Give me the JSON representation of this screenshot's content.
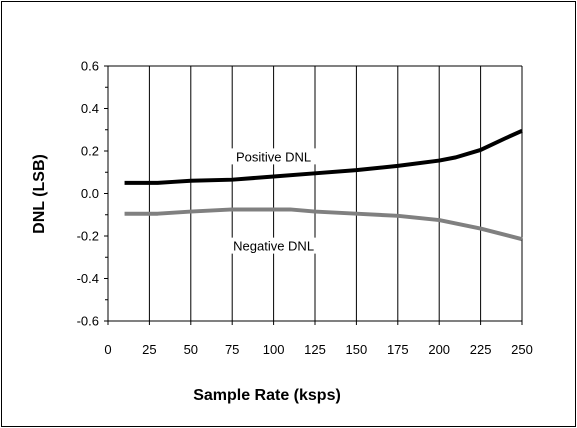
{
  "chart_data": {
    "type": "line",
    "title": "",
    "xlabel": "Sample Rate (ksps)",
    "ylabel": "DNL (LSB)",
    "xlim": [
      0,
      250
    ],
    "ylim": [
      -0.6,
      0.6
    ],
    "x_ticks": [
      0,
      25,
      50,
      75,
      100,
      125,
      150,
      175,
      200,
      225,
      250
    ],
    "y_ticks": [
      -0.6,
      -0.4,
      -0.2,
      0.0,
      0.2,
      0.4,
      0.6
    ],
    "x_tick_labels": [
      "0",
      "25",
      "50",
      "75",
      "100",
      "125",
      "150",
      "175",
      "200",
      "225",
      "250"
    ],
    "y_tick_labels": [
      "-0.6",
      "-0.4",
      "-0.2",
      "0.0",
      "0.2",
      "0.4",
      "0.6"
    ],
    "grid": "vertical major gridlines, no horizontal gridlines",
    "legend": "none (series labeled directly on plot)",
    "series": [
      {
        "name": "Positive DNL",
        "color": "#000000",
        "x": [
          10,
          30,
          40,
          50,
          75,
          100,
          125,
          150,
          175,
          200,
          210,
          225,
          240,
          250
        ],
        "y": [
          0.05,
          0.05,
          0.055,
          0.06,
          0.065,
          0.08,
          0.095,
          0.11,
          0.13,
          0.155,
          0.17,
          0.205,
          0.26,
          0.295
        ]
      },
      {
        "name": "Negative DNL",
        "color": "#808080",
        "x": [
          10,
          30,
          50,
          75,
          100,
          110,
          125,
          150,
          175,
          200,
          225,
          250
        ],
        "y": [
          -0.095,
          -0.095,
          -0.085,
          -0.075,
          -0.075,
          -0.075,
          -0.085,
          -0.095,
          -0.105,
          -0.125,
          -0.165,
          -0.215
        ]
      }
    ],
    "annotations": [
      {
        "text": "Positive DNL",
        "series": "Positive DNL",
        "x": 100,
        "y": 0.17
      },
      {
        "text": "Negative DNL",
        "series": "Negative DNL",
        "x": 100,
        "y": -0.25
      }
    ]
  }
}
